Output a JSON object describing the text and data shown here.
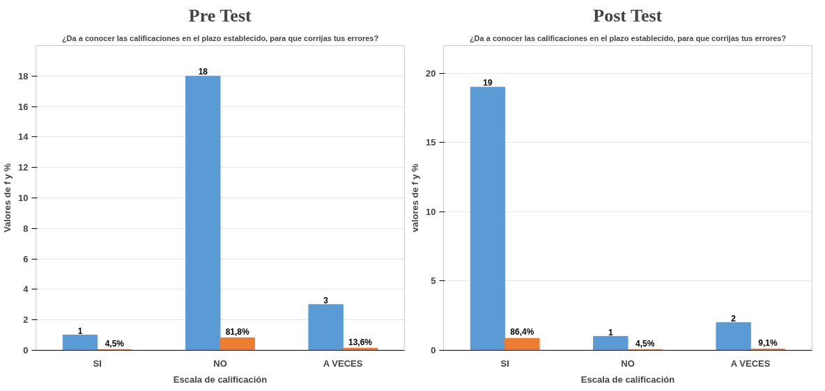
{
  "chart_data": [
    {
      "type": "bar",
      "title": "Pre Test",
      "subtitle": "¿Da a conocer las calificaciones en el plazo establecido, para que corrijas tus errores?",
      "xlabel": "Escala de calificación",
      "ylabel": "Valores de f y %",
      "categories": [
        "SI",
        "NO",
        "A VECES"
      ],
      "ylim": [
        0,
        20
      ],
      "yticks": [
        0,
        2,
        4,
        6,
        8,
        10,
        12,
        14,
        16,
        18
      ],
      "grid": "y",
      "series": [
        {
          "color": "#5b9bd5",
          "values": [
            1,
            18,
            3
          ],
          "value_labels": [
            "1",
            "18",
            "3"
          ]
        },
        {
          "color": "#ed7d31",
          "values": [
            0.045,
            0.818,
            0.136
          ],
          "value_labels": [
            "4,5%",
            "81,8%",
            "13,6%"
          ]
        }
      ]
    },
    {
      "type": "bar",
      "title": "Post Test",
      "subtitle": "¿Da a conocer las calificaciones en el plazo establecido, para que corrijas tus errores?",
      "xlabel": "Escala de calificación",
      "ylabel": "valores de f y %",
      "categories": [
        "SI",
        "NO",
        "A VECES"
      ],
      "ylim": [
        0,
        22
      ],
      "yticks": [
        0,
        5,
        10,
        15,
        20
      ],
      "grid": "y",
      "series": [
        {
          "color": "#5b9bd5",
          "values": [
            19,
            1,
            2
          ],
          "value_labels": [
            "19",
            "1",
            "2"
          ]
        },
        {
          "color": "#ed7d31",
          "values": [
            0.864,
            0.045,
            0.091
          ],
          "value_labels": [
            "86,4%",
            "4,5%",
            "9,1%"
          ]
        }
      ]
    }
  ]
}
